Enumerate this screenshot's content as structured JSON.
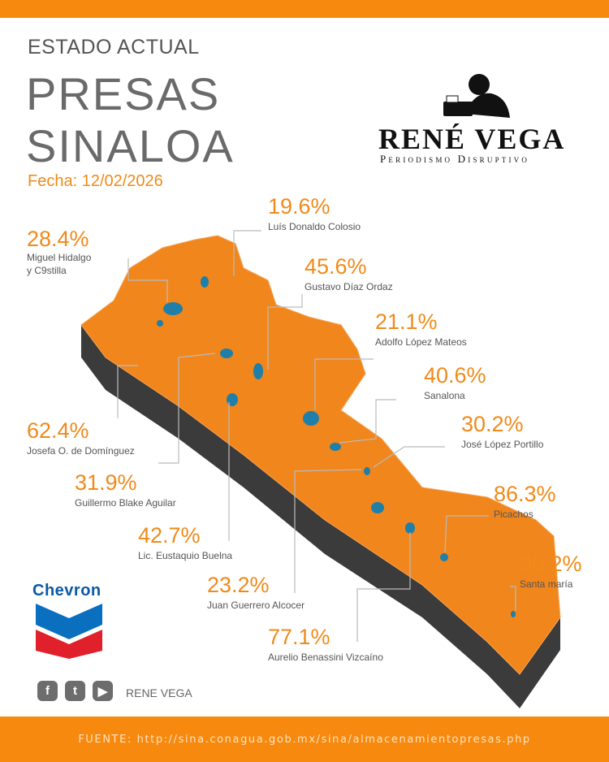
{
  "header": {
    "subtitle": "ESTADO ACTUAL",
    "title_line1": "PRESAS",
    "title_line2": "SINALOA",
    "date": "Fecha: 12/02/2026"
  },
  "brand": {
    "name": "RENÉ VEGA",
    "tagline": "Periodismo Disruptivo"
  },
  "colors": {
    "accent": "#f7890f",
    "map_fill": "#f0861c",
    "water": "#1f7fa8",
    "extrusion": "#3a3a3a"
  },
  "dams": [
    {
      "percent": "28.4%",
      "name": "Miguel Hidalgo",
      "name2": "y C9stilla",
      "level": 28.4
    },
    {
      "percent": "19.6%",
      "name": "Luís Donaldo Colosio",
      "level": 19.6
    },
    {
      "percent": "45.6%",
      "name": "Gustavo Díaz Ordaz",
      "level": 45.6
    },
    {
      "percent": "21.1%",
      "name": "Adolfo López Mateos",
      "level": 21.1
    },
    {
      "percent": "40.6%",
      "name": "Sanalona",
      "level": 40.6
    },
    {
      "percent": "30.2%",
      "name": "José López Portillo",
      "level": 30.2
    },
    {
      "percent": "86.3%",
      "name": "Picachos",
      "level": 86.3
    },
    {
      "percent": "90.2%",
      "name": "Santa maría",
      "level": 90.2
    },
    {
      "percent": "62.4%",
      "name": "Josefa O. de Domínguez",
      "level": 62.4
    },
    {
      "percent": "31.9%",
      "name": "Guillermo Blake Aguilar",
      "level": 31.9
    },
    {
      "percent": "42.7%",
      "name": "Lic. Eustaquio Buelna",
      "level": 42.7
    },
    {
      "percent": "23.2%",
      "name": "Juan Guerrero Alcocer",
      "level": 23.2
    },
    {
      "percent": "77.1%",
      "name": "Aurelio Benassini Vizcaíno",
      "level": 77.1
    }
  ],
  "sponsor": {
    "name": "Chevron"
  },
  "social": {
    "icons": [
      "facebook-icon",
      "twitter-icon",
      "youtube-icon"
    ],
    "name": "RENE VEGA"
  },
  "footer": {
    "source": "FUENTE: http://sina.conagua.gob.mx/sina/almacenamientopresas.php"
  }
}
